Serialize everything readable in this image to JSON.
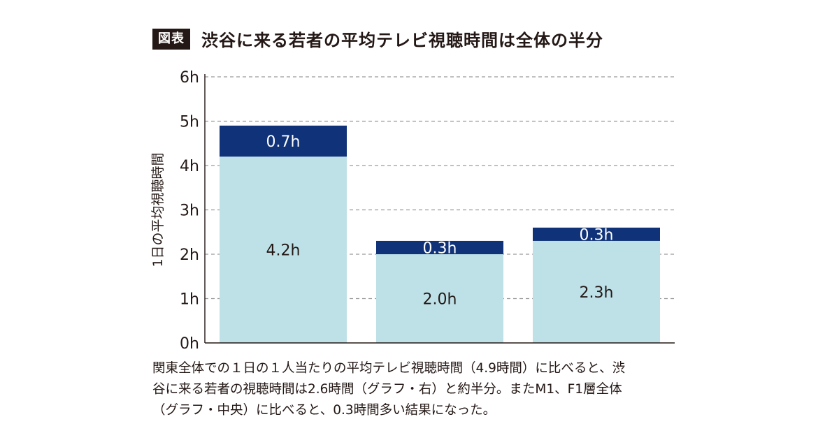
{
  "header": {
    "badge": "図表",
    "title": "渋谷に来る若者の平均テレビ視聴時間は全体の半分"
  },
  "chart_data": {
    "type": "bar",
    "stacked": true,
    "categories": [
      "",
      "",
      ""
    ],
    "series": [
      {
        "values": [
          4.2,
          2.0,
          2.3
        ],
        "labels": [
          "4.2h",
          "2.0h",
          "2.3h"
        ],
        "color": "#bee1e8"
      },
      {
        "values": [
          0.7,
          0.3,
          0.3
        ],
        "labels": [
          "0.7h",
          "0.3h",
          "0.3h"
        ],
        "color": "#0f3278"
      }
    ],
    "ylabel": "1日の平均視聴時間",
    "ylim": [
      0,
      6
    ],
    "yticks": [
      0,
      1,
      2,
      3,
      4,
      5,
      6
    ],
    "ytick_labels": [
      "0h",
      "1h",
      "2h",
      "3h",
      "4h",
      "5h",
      "6h"
    ],
    "grid": true
  },
  "caption": {
    "lines": [
      "関東全体での１日の１人当たりの平均テレビ視聴時間（4.9時間）に比べると、渋",
      "谷に来る若者の視聴時間は2.6時間（グラフ・右）と約半分。またM1、F1層全体",
      "（グラフ・中央）に比べると、0.3時間多い結果になった。"
    ]
  }
}
